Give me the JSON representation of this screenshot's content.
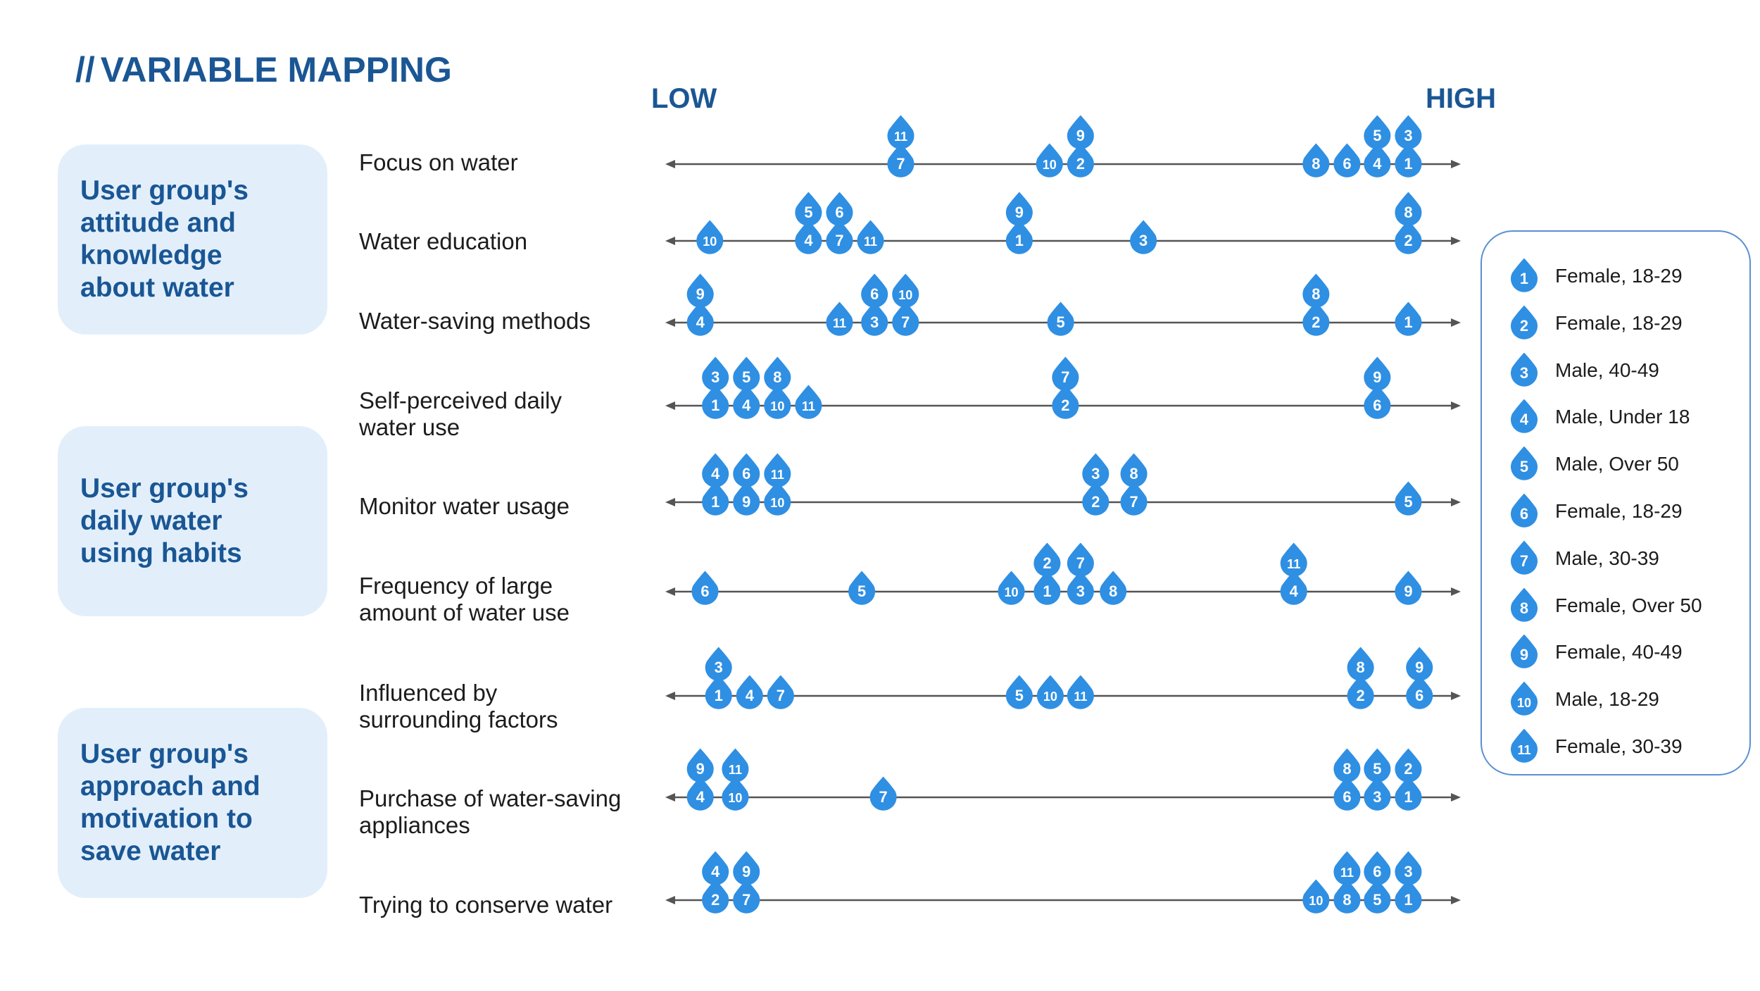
{
  "title": {
    "slashes": "//",
    "text": "VARIABLE MAPPING"
  },
  "scale": {
    "low": "LOW",
    "high": "HIGH"
  },
  "groups": [
    {
      "text": "User group's\nattitude and\nknowledge\nabout water"
    },
    {
      "text": "User group's\ndaily water\nusing habits"
    },
    {
      "text": "User group's\napproach and\nmotivation to\nsave water"
    }
  ],
  "colors": {
    "marker": "#2f8fe3",
    "marker_text": "#ffffff",
    "group_bg": "#e2effb",
    "group_text": "#1a5694",
    "axis": "#555555"
  },
  "rows": [
    {
      "label": "Focus on water",
      "markers": [
        {
          "n": "11",
          "pos": 0.296,
          "level": 1
        },
        {
          "n": "7",
          "pos": 0.296,
          "level": 0
        },
        {
          "n": "9",
          "pos": 0.522,
          "level": 1
        },
        {
          "n": "10",
          "pos": 0.483,
          "level": 0
        },
        {
          "n": "2",
          "pos": 0.522,
          "level": 0
        },
        {
          "n": "5",
          "pos": 0.895,
          "level": 1
        },
        {
          "n": "3",
          "pos": 0.934,
          "level": 1
        },
        {
          "n": "8",
          "pos": 0.818,
          "level": 0
        },
        {
          "n": "6",
          "pos": 0.857,
          "level": 0
        },
        {
          "n": "4",
          "pos": 0.895,
          "level": 0
        },
        {
          "n": "1",
          "pos": 0.934,
          "level": 0
        }
      ]
    },
    {
      "label": "Water education",
      "markers": [
        {
          "n": "10",
          "pos": 0.056,
          "level": 0
        },
        {
          "n": "5",
          "pos": 0.18,
          "level": 1
        },
        {
          "n": "6",
          "pos": 0.219,
          "level": 1
        },
        {
          "n": "4",
          "pos": 0.18,
          "level": 0
        },
        {
          "n": "7",
          "pos": 0.219,
          "level": 0
        },
        {
          "n": "11",
          "pos": 0.258,
          "level": 0
        },
        {
          "n": "9",
          "pos": 0.445,
          "level": 1
        },
        {
          "n": "1",
          "pos": 0.445,
          "level": 0
        },
        {
          "n": "3",
          "pos": 0.601,
          "level": 0
        },
        {
          "n": "8",
          "pos": 0.934,
          "level": 1
        },
        {
          "n": "2",
          "pos": 0.934,
          "level": 0
        }
      ]
    },
    {
      "label": "Water-saving methods",
      "markers": [
        {
          "n": "9",
          "pos": 0.044,
          "level": 1
        },
        {
          "n": "4",
          "pos": 0.044,
          "level": 0
        },
        {
          "n": "6",
          "pos": 0.263,
          "level": 1
        },
        {
          "n": "10",
          "pos": 0.302,
          "level": 1
        },
        {
          "n": "11",
          "pos": 0.219,
          "level": 0
        },
        {
          "n": "3",
          "pos": 0.263,
          "level": 0
        },
        {
          "n": "7",
          "pos": 0.302,
          "level": 0
        },
        {
          "n": "5",
          "pos": 0.497,
          "level": 0
        },
        {
          "n": "8",
          "pos": 0.818,
          "level": 1
        },
        {
          "n": "2",
          "pos": 0.818,
          "level": 0
        },
        {
          "n": "1",
          "pos": 0.934,
          "level": 0
        }
      ]
    },
    {
      "label": "Self-perceived daily\nwater use",
      "markers": [
        {
          "n": "3",
          "pos": 0.063,
          "level": 1
        },
        {
          "n": "5",
          "pos": 0.102,
          "level": 1
        },
        {
          "n": "8",
          "pos": 0.141,
          "level": 1
        },
        {
          "n": "1",
          "pos": 0.063,
          "level": 0
        },
        {
          "n": "4",
          "pos": 0.102,
          "level": 0
        },
        {
          "n": "10",
          "pos": 0.141,
          "level": 0
        },
        {
          "n": "11",
          "pos": 0.18,
          "level": 0
        },
        {
          "n": "7",
          "pos": 0.503,
          "level": 1
        },
        {
          "n": "2",
          "pos": 0.503,
          "level": 0
        },
        {
          "n": "9",
          "pos": 0.895,
          "level": 1
        },
        {
          "n": "6",
          "pos": 0.895,
          "level": 0
        }
      ]
    },
    {
      "label": "Monitor water usage",
      "markers": [
        {
          "n": "4",
          "pos": 0.063,
          "level": 1
        },
        {
          "n": "6",
          "pos": 0.102,
          "level": 1
        },
        {
          "n": "11",
          "pos": 0.141,
          "level": 1
        },
        {
          "n": "1",
          "pos": 0.063,
          "level": 0
        },
        {
          "n": "9",
          "pos": 0.102,
          "level": 0
        },
        {
          "n": "10",
          "pos": 0.141,
          "level": 0
        },
        {
          "n": "3",
          "pos": 0.541,
          "level": 1
        },
        {
          "n": "8",
          "pos": 0.589,
          "level": 1
        },
        {
          "n": "2",
          "pos": 0.541,
          "level": 0
        },
        {
          "n": "7",
          "pos": 0.589,
          "level": 0
        },
        {
          "n": "5",
          "pos": 0.934,
          "level": 0
        }
      ]
    },
    {
      "label": "Frequency of large\namount of water use",
      "markers": [
        {
          "n": "6",
          "pos": 0.05,
          "level": 0
        },
        {
          "n": "5",
          "pos": 0.247,
          "level": 0
        },
        {
          "n": "2",
          "pos": 0.48,
          "level": 1
        },
        {
          "n": "7",
          "pos": 0.522,
          "level": 1
        },
        {
          "n": "10",
          "pos": 0.435,
          "level": 0
        },
        {
          "n": "1",
          "pos": 0.48,
          "level": 0
        },
        {
          "n": "3",
          "pos": 0.522,
          "level": 0
        },
        {
          "n": "8",
          "pos": 0.563,
          "level": 0
        },
        {
          "n": "11",
          "pos": 0.79,
          "level": 1
        },
        {
          "n": "4",
          "pos": 0.79,
          "level": 0
        },
        {
          "n": "9",
          "pos": 0.934,
          "level": 0
        }
      ]
    },
    {
      "label": "Influenced by\nsurrounding factors",
      "markers": [
        {
          "n": "3",
          "pos": 0.067,
          "level": 1
        },
        {
          "n": "1",
          "pos": 0.067,
          "level": 0
        },
        {
          "n": "4",
          "pos": 0.106,
          "level": 0
        },
        {
          "n": "7",
          "pos": 0.145,
          "level": 0
        },
        {
          "n": "5",
          "pos": 0.445,
          "level": 0
        },
        {
          "n": "10",
          "pos": 0.484,
          "level": 0
        },
        {
          "n": "11",
          "pos": 0.522,
          "level": 0
        },
        {
          "n": "8",
          "pos": 0.874,
          "level": 1
        },
        {
          "n": "2",
          "pos": 0.874,
          "level": 0
        },
        {
          "n": "9",
          "pos": 0.948,
          "level": 1
        },
        {
          "n": "6",
          "pos": 0.948,
          "level": 0
        }
      ]
    },
    {
      "label": "Purchase of water-saving\nappliances",
      "markers": [
        {
          "n": "9",
          "pos": 0.044,
          "level": 1
        },
        {
          "n": "11",
          "pos": 0.088,
          "level": 1
        },
        {
          "n": "4",
          "pos": 0.044,
          "level": 0
        },
        {
          "n": "10",
          "pos": 0.088,
          "level": 0
        },
        {
          "n": "7",
          "pos": 0.274,
          "level": 0
        },
        {
          "n": "8",
          "pos": 0.857,
          "level": 1
        },
        {
          "n": "5",
          "pos": 0.895,
          "level": 1
        },
        {
          "n": "2",
          "pos": 0.934,
          "level": 1
        },
        {
          "n": "6",
          "pos": 0.857,
          "level": 0
        },
        {
          "n": "3",
          "pos": 0.895,
          "level": 0
        },
        {
          "n": "1",
          "pos": 0.934,
          "level": 0
        }
      ]
    },
    {
      "label": "Trying to conserve water",
      "markers": [
        {
          "n": "4",
          "pos": 0.063,
          "level": 1
        },
        {
          "n": "9",
          "pos": 0.102,
          "level": 1
        },
        {
          "n": "2",
          "pos": 0.063,
          "level": 0
        },
        {
          "n": "7",
          "pos": 0.102,
          "level": 0
        },
        {
          "n": "11",
          "pos": 0.857,
          "level": 1
        },
        {
          "n": "6",
          "pos": 0.895,
          "level": 1
        },
        {
          "n": "3",
          "pos": 0.934,
          "level": 1
        },
        {
          "n": "10",
          "pos": 0.818,
          "level": 0
        },
        {
          "n": "8",
          "pos": 0.857,
          "level": 0
        },
        {
          "n": "5",
          "pos": 0.895,
          "level": 0
        },
        {
          "n": "1",
          "pos": 0.934,
          "level": 0
        }
      ]
    }
  ],
  "legend": [
    {
      "n": "1",
      "text": "Female, 18-29"
    },
    {
      "n": "2",
      "text": "Female, 18-29"
    },
    {
      "n": "3",
      "text": "Male, 40-49"
    },
    {
      "n": "4",
      "text": "Male, Under 18"
    },
    {
      "n": "5",
      "text": "Male, Over 50"
    },
    {
      "n": "6",
      "text": "Female, 18-29"
    },
    {
      "n": "7",
      "text": "Male, 30-39"
    },
    {
      "n": "8",
      "text": "Female, Over 50"
    },
    {
      "n": "9",
      "text": "Female, 40-49"
    },
    {
      "n": "10",
      "text": "Male, 18-29"
    },
    {
      "n": "11",
      "text": "Female, 30-39"
    }
  ]
}
